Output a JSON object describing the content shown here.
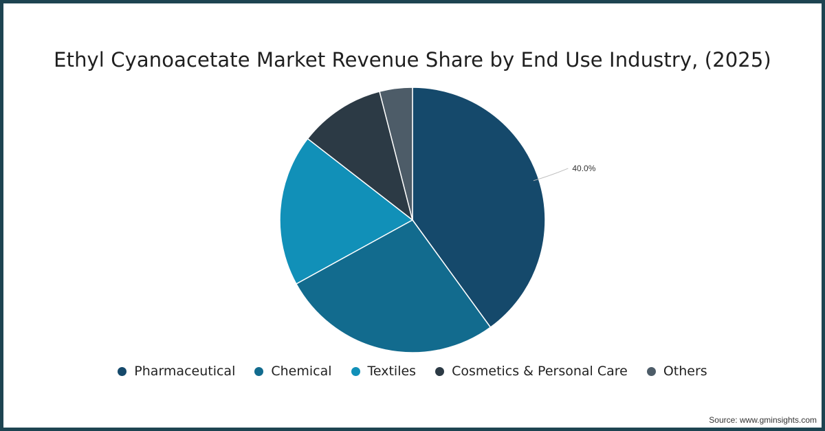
{
  "chart_data": {
    "type": "pie",
    "title": "Ethyl Cyanoacetate Market Revenue Share by End Use Industry, (2025)",
    "categories": [
      "Pharmaceutical",
      "Chemical",
      "Textiles",
      "Cosmetics & Personal Care",
      "Others"
    ],
    "values": [
      40.0,
      27.0,
      18.5,
      10.5,
      4.0
    ],
    "colors": [
      "#15496b",
      "#126b8e",
      "#1190b8",
      "#2c3a45",
      "#4d5c68"
    ],
    "data_labels": [
      {
        "category": "Pharmaceutical",
        "text": "40.0%"
      }
    ],
    "legend_position": "bottom",
    "start_angle": "top, clockwise"
  },
  "source": "Source: www.gminsights.com"
}
